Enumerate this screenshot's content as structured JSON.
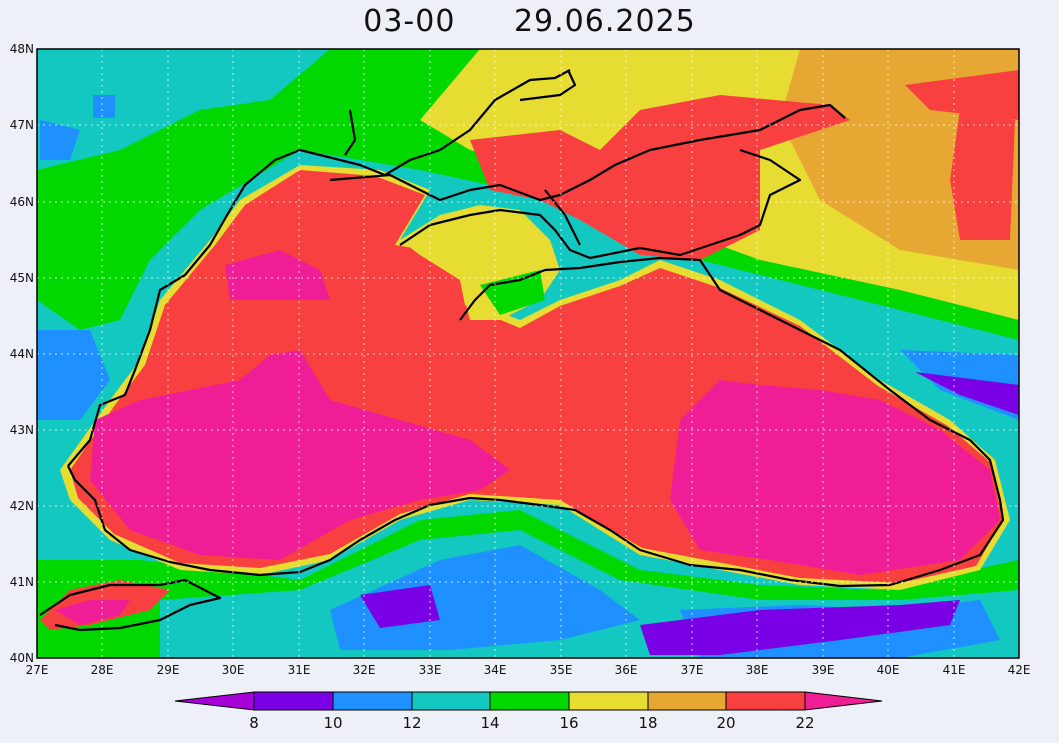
{
  "title": {
    "time": "03-00",
    "date": "29.06.2025"
  },
  "axes": {
    "lat_labels": [
      "48N",
      "47N",
      "46N",
      "45N",
      "44N",
      "43N",
      "42N",
      "41N",
      "40N"
    ],
    "lon_labels": [
      "27E",
      "28E",
      "29E",
      "30E",
      "31E",
      "32E",
      "33E",
      "34E",
      "35E",
      "36E",
      "37E",
      "38E",
      "39E",
      "40E",
      "41E",
      "42E"
    ]
  },
  "palette": {
    "c8": "#a800d8",
    "c8_10": "#7a00e6",
    "c10_12": "#1e90ff",
    "c12_14": "#12c8c0",
    "c14_16": "#00d800",
    "c16_18": "#e6dc32",
    "c18_20": "#e6a832",
    "c20_22": "#f84040",
    "c22": "#f01e96",
    "background": "#eef0f8",
    "land_outline": "#000000"
  },
  "colorbar": {
    "ticks": [
      "8",
      "10",
      "12",
      "14",
      "16",
      "18",
      "20",
      "22"
    ],
    "colors": [
      "#a800d8",
      "#7a00e6",
      "#1e90ff",
      "#12c8c0",
      "#00d800",
      "#e6dc32",
      "#e6a832",
      "#f84040",
      "#f01e96"
    ]
  }
}
